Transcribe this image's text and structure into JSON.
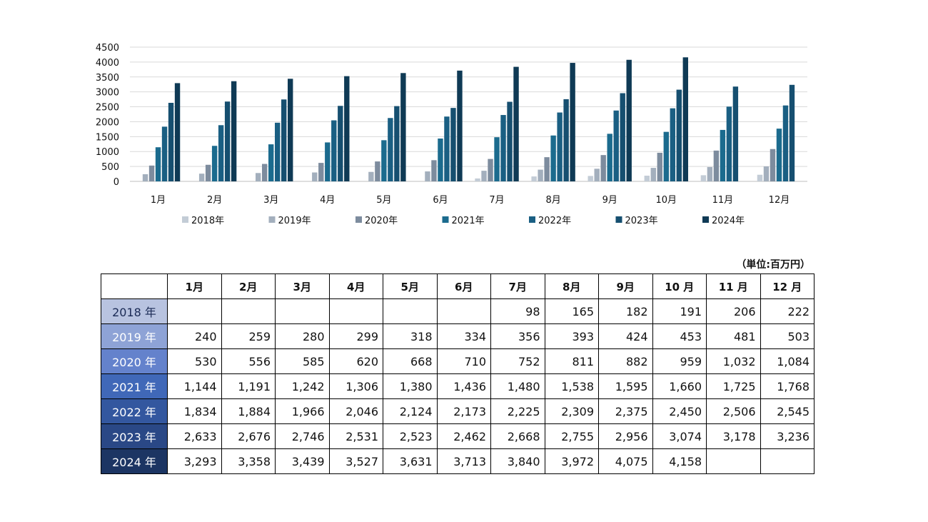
{
  "chart_data": {
    "type": "bar",
    "categories": [
      "1月",
      "2月",
      "3月",
      "4月",
      "5月",
      "6月",
      "7月",
      "8月",
      "9月",
      "10月",
      "11月",
      "12月"
    ],
    "ylim": [
      0,
      4500
    ],
    "yticks": [
      0,
      500,
      1000,
      1500,
      2000,
      2500,
      3000,
      3500,
      4000,
      4500
    ],
    "grid": true,
    "legend": "bottom",
    "series": [
      {
        "name": "2018年",
        "color": "#c3ccd6",
        "values": [
          null,
          null,
          null,
          null,
          null,
          null,
          98,
          165,
          182,
          191,
          206,
          222
        ]
      },
      {
        "name": "2019年",
        "color": "#a3afbd",
        "values": [
          240,
          259,
          280,
          299,
          318,
          334,
          356,
          393,
          424,
          453,
          481,
          503
        ]
      },
      {
        "name": "2020年",
        "color": "#7d8c9e",
        "values": [
          530,
          556,
          585,
          620,
          668,
          710,
          752,
          811,
          882,
          959,
          1032,
          1084
        ]
      },
      {
        "name": "2021年",
        "color": "#1b6b8e",
        "values": [
          1144,
          1191,
          1242,
          1306,
          1380,
          1436,
          1480,
          1538,
          1595,
          1660,
          1725,
          1768
        ]
      },
      {
        "name": "2022年",
        "color": "#1a5f83",
        "values": [
          1834,
          1884,
          1966,
          2046,
          2124,
          2173,
          2225,
          2309,
          2375,
          2450,
          2506,
          2545
        ]
      },
      {
        "name": "2023年",
        "color": "#164f70",
        "values": [
          2633,
          2676,
          2746,
          2531,
          2523,
          2462,
          2668,
          2755,
          2956,
          3074,
          3178,
          3236
        ]
      },
      {
        "name": "2024年",
        "color": "#0f3a55",
        "values": [
          3293,
          3358,
          3439,
          3527,
          3631,
          3713,
          3840,
          3972,
          4075,
          4158,
          null,
          null
        ]
      }
    ]
  },
  "table": {
    "unit_label": "（単位:百万円）",
    "columns": [
      "1月",
      "2月",
      "3月",
      "4月",
      "5月",
      "6月",
      "7月",
      "8月",
      "9月",
      "10 月",
      "11 月",
      "12 月"
    ],
    "rows": [
      {
        "label": "2018 年",
        "bg": "#b8c3e0",
        "fg": "#1a2a55",
        "cells": [
          "",
          "",
          "",
          "",
          "",
          "",
          "98",
          "165",
          "182",
          "191",
          "206",
          "222"
        ]
      },
      {
        "label": "2019 年",
        "bg": "#8ea3d6",
        "fg": "#ffffff",
        "cells": [
          "240",
          "259",
          "280",
          "299",
          "318",
          "334",
          "356",
          "393",
          "424",
          "453",
          "481",
          "503"
        ]
      },
      {
        "label": "2020 年",
        "bg": "#6482cc",
        "fg": "#ffffff",
        "cells": [
          "530",
          "556",
          "585",
          "620",
          "668",
          "710",
          "752",
          "811",
          "882",
          "959",
          "1,032",
          "1,084"
        ]
      },
      {
        "label": "2021 年",
        "bg": "#4068b8",
        "fg": "#ffffff",
        "cells": [
          "1,144",
          "1,191",
          "1,242",
          "1,306",
          "1,380",
          "1,436",
          "1,480",
          "1,538",
          "1,595",
          "1,660",
          "1,725",
          "1,768"
        ]
      },
      {
        "label": "2022 年",
        "bg": "#33579f",
        "fg": "#ffffff",
        "cells": [
          "1,834",
          "1,884",
          "1,966",
          "2,046",
          "2,124",
          "2,173",
          "2,225",
          "2,309",
          "2,375",
          "2,450",
          "2,506",
          "2,545"
        ]
      },
      {
        "label": "2023 年",
        "bg": "#2a4886",
        "fg": "#ffffff",
        "cells": [
          "2,633",
          "2,676",
          "2,746",
          "2,531",
          "2,523",
          "2,462",
          "2,668",
          "2,755",
          "2,956",
          "3,074",
          "3,178",
          "3,236"
        ]
      },
      {
        "label": "2024 年",
        "bg": "#1c3563",
        "fg": "#ffffff",
        "cells": [
          "3,293",
          "3,358",
          "3,439",
          "3,527",
          "3,631",
          "3,713",
          "3,840",
          "3,972",
          "4,075",
          "4,158",
          "",
          ""
        ]
      }
    ]
  }
}
